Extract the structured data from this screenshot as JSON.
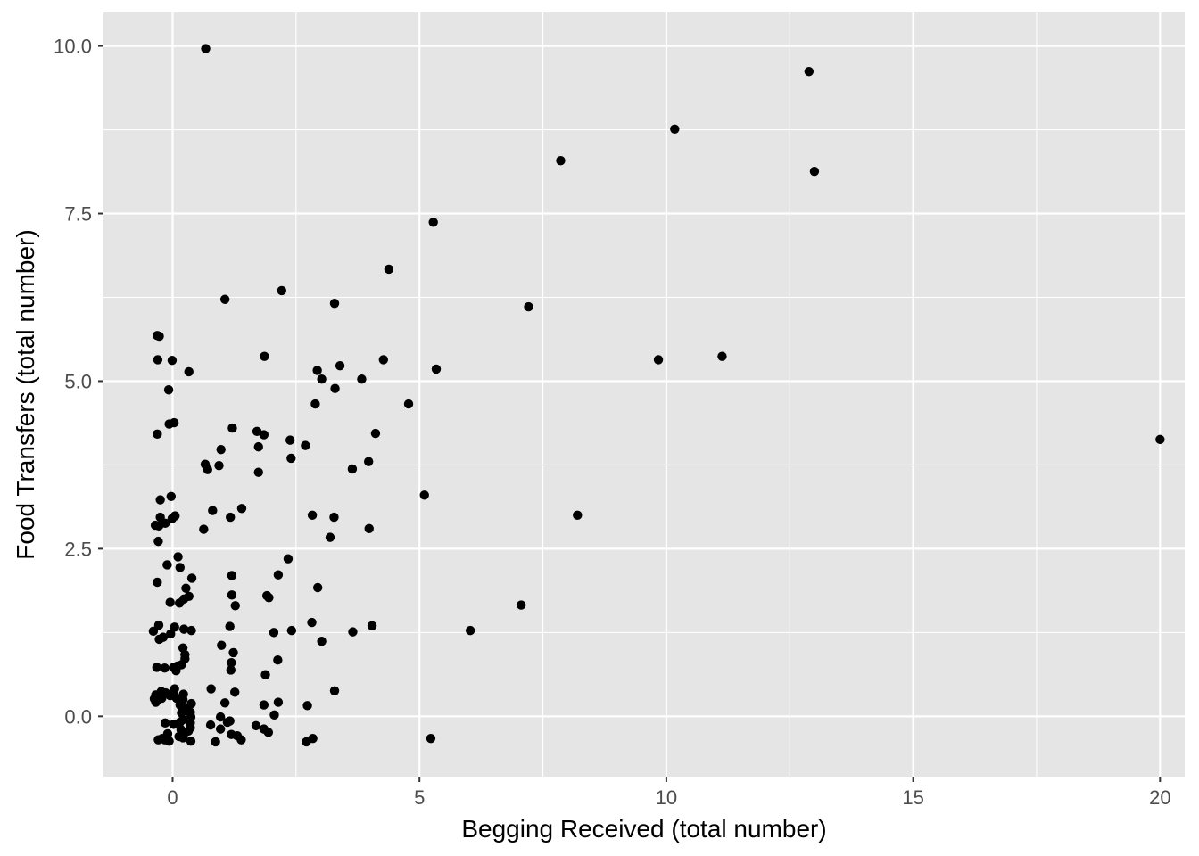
{
  "chart_data": {
    "type": "scatter",
    "title": "",
    "xlabel": "Begging Received (total number)",
    "ylabel": "Food Transfers (total number)",
    "xlim": [
      -1.4,
      20.5
    ],
    "ylim": [
      -0.9,
      10.5
    ],
    "x_ticks": [
      0,
      5,
      10,
      15,
      20
    ],
    "x_tick_labels": [
      "0",
      "5",
      "10",
      "15",
      "20"
    ],
    "y_ticks": [
      0,
      2.5,
      5,
      7.5,
      10
    ],
    "y_tick_labels": [
      "0.0",
      "2.5",
      "5.0",
      "7.5",
      "10.0"
    ],
    "grid": true,
    "legend": "none",
    "colors": {
      "panel": "#e5e5e5",
      "grid": "#ffffff",
      "point": "#000000"
    },
    "series": [
      {
        "points": [
          [
            0.67,
            9.96
          ],
          [
            12.89,
            9.62
          ],
          [
            10.17,
            8.76
          ],
          [
            7.86,
            8.29
          ],
          [
            13.0,
            8.13
          ],
          [
            5.28,
            7.37
          ],
          [
            4.38,
            6.67
          ],
          [
            2.21,
            6.35
          ],
          [
            1.06,
            6.22
          ],
          [
            3.28,
            6.16
          ],
          [
            7.21,
            6.11
          ],
          [
            -0.31,
            5.68
          ],
          [
            -0.27,
            5.67
          ],
          [
            11.13,
            5.37
          ],
          [
            1.86,
            5.37
          ],
          [
            9.84,
            5.32
          ],
          [
            4.27,
            5.32
          ],
          [
            -0.3,
            5.32
          ],
          [
            -0.01,
            5.31
          ],
          [
            3.39,
            5.23
          ],
          [
            5.34,
            5.18
          ],
          [
            2.93,
            5.16
          ],
          [
            0.33,
            5.14
          ],
          [
            3.02,
            5.03
          ],
          [
            3.83,
            5.03
          ],
          [
            3.29,
            4.89
          ],
          [
            -0.08,
            4.87
          ],
          [
            2.89,
            4.66
          ],
          [
            4.78,
            4.66
          ],
          [
            -0.07,
            4.36
          ],
          [
            0.03,
            4.38
          ],
          [
            1.21,
            4.3
          ],
          [
            1.71,
            4.25
          ],
          [
            -0.31,
            4.21
          ],
          [
            1.85,
            4.2
          ],
          [
            4.11,
            4.22
          ],
          [
            2.38,
            4.12
          ],
          [
            20.0,
            4.13
          ],
          [
            2.69,
            4.04
          ],
          [
            1.74,
            4.02
          ],
          [
            0.98,
            3.98
          ],
          [
            2.4,
            3.85
          ],
          [
            3.97,
            3.8
          ],
          [
            0.66,
            3.76
          ],
          [
            0.94,
            3.74
          ],
          [
            0.71,
            3.68
          ],
          [
            3.64,
            3.69
          ],
          [
            1.74,
            3.64
          ],
          [
            -0.25,
            3.23
          ],
          [
            -0.03,
            3.28
          ],
          [
            5.1,
            3.3
          ],
          [
            1.4,
            3.1
          ],
          [
            0.81,
            3.07
          ],
          [
            2.83,
            3.0
          ],
          [
            3.27,
            2.97
          ],
          [
            1.17,
            2.97
          ],
          [
            8.2,
            3.0
          ],
          [
            -0.25,
            2.97
          ],
          [
            -0.01,
            2.95
          ],
          [
            0.05,
            2.99
          ],
          [
            -0.35,
            2.85
          ],
          [
            -0.28,
            2.84
          ],
          [
            -0.15,
            2.88
          ],
          [
            0.63,
            2.79
          ],
          [
            3.98,
            2.8
          ],
          [
            3.19,
            2.67
          ],
          [
            -0.29,
            2.61
          ],
          [
            0.11,
            2.38
          ],
          [
            2.34,
            2.35
          ],
          [
            -0.11,
            2.26
          ],
          [
            0.15,
            2.22
          ],
          [
            2.14,
            2.11
          ],
          [
            1.2,
            2.1
          ],
          [
            0.39,
            2.06
          ],
          [
            -0.31,
            2.0
          ],
          [
            2.94,
            1.92
          ],
          [
            0.27,
            1.91
          ],
          [
            1.91,
            1.8
          ],
          [
            1.2,
            1.81
          ],
          [
            0.33,
            1.79
          ],
          [
            1.95,
            1.77
          ],
          [
            0.23,
            1.75
          ],
          [
            -0.05,
            1.7
          ],
          [
            0.14,
            1.69
          ],
          [
            7.06,
            1.66
          ],
          [
            1.27,
            1.65
          ],
          [
            2.82,
            1.4
          ],
          [
            -0.28,
            1.36
          ],
          [
            0.04,
            1.33
          ],
          [
            1.16,
            1.34
          ],
          [
            4.04,
            1.35
          ],
          [
            0.23,
            1.3
          ],
          [
            6.03,
            1.28
          ],
          [
            -0.39,
            1.27
          ],
          [
            0.38,
            1.28
          ],
          [
            2.41,
            1.28
          ],
          [
            3.65,
            1.26
          ],
          [
            2.05,
            1.25
          ],
          [
            -0.04,
            1.23
          ],
          [
            -0.27,
            1.15
          ],
          [
            -0.19,
            1.18
          ],
          [
            3.02,
            1.12
          ],
          [
            0.99,
            1.06
          ],
          [
            0.21,
            1.02
          ],
          [
            0.25,
            0.92
          ],
          [
            1.23,
            0.95
          ],
          [
            0.25,
            0.86
          ],
          [
            2.13,
            0.84
          ],
          [
            1.19,
            0.8
          ],
          [
            0.1,
            0.75
          ],
          [
            0.18,
            0.77
          ],
          [
            -0.32,
            0.73
          ],
          [
            -0.16,
            0.72
          ],
          [
            0.02,
            0.73
          ],
          [
            1.18,
            0.69
          ],
          [
            0.07,
            0.68
          ],
          [
            1.88,
            0.62
          ],
          [
            0.78,
            0.41
          ],
          [
            0.04,
            0.41
          ],
          [
            3.28,
            0.38
          ],
          [
            1.26,
            0.36
          ],
          [
            -0.23,
            0.37
          ],
          [
            -0.14,
            0.35
          ],
          [
            0.22,
            0.33
          ],
          [
            -0.34,
            0.32
          ],
          [
            -0.05,
            0.31
          ],
          [
            -0.22,
            0.27
          ],
          [
            0.08,
            0.27
          ],
          [
            0.02,
            0.32
          ],
          [
            -0.37,
            0.26
          ],
          [
            -0.34,
            0.21
          ],
          [
            -0.31,
            0.24
          ],
          [
            0.21,
            0.25
          ],
          [
            1.06,
            0.2
          ],
          [
            2.14,
            0.21
          ],
          [
            0.38,
            0.19
          ],
          [
            0.15,
            0.17
          ],
          [
            2.73,
            0.16
          ],
          [
            1.85,
            0.17
          ],
          [
            0.3,
            0.12
          ],
          [
            0.18,
            0.05
          ],
          [
            0.36,
            0.06
          ],
          [
            2.06,
            0.02
          ],
          [
            0.97,
            -0.01
          ],
          [
            0.37,
            -0.01
          ],
          [
            0.21,
            -0.05
          ],
          [
            1.16,
            -0.07
          ],
          [
            0.15,
            -0.09
          ],
          [
            -0.15,
            -0.1
          ],
          [
            1.11,
            -0.09
          ],
          [
            0.36,
            -0.1
          ],
          [
            0.02,
            -0.12
          ],
          [
            0.77,
            -0.13
          ],
          [
            1.69,
            -0.14
          ],
          [
            0.36,
            -0.17
          ],
          [
            0.97,
            -0.19
          ],
          [
            1.85,
            -0.19
          ],
          [
            0.17,
            -0.2
          ],
          [
            0.32,
            -0.22
          ],
          [
            1.94,
            -0.24
          ],
          [
            0.23,
            -0.26
          ],
          [
            1.19,
            -0.27
          ],
          [
            -0.1,
            -0.26
          ],
          [
            0.13,
            -0.3
          ],
          [
            1.31,
            -0.29
          ],
          [
            -0.21,
            -0.33
          ],
          [
            2.84,
            -0.33
          ],
          [
            5.23,
            -0.33
          ],
          [
            0.21,
            -0.32
          ],
          [
            -0.16,
            -0.35
          ],
          [
            1.39,
            -0.35
          ],
          [
            -0.29,
            -0.35
          ],
          [
            0.37,
            -0.37
          ],
          [
            2.71,
            -0.38
          ],
          [
            -0.07,
            -0.37
          ],
          [
            0.87,
            -0.38
          ]
        ]
      }
    ]
  }
}
